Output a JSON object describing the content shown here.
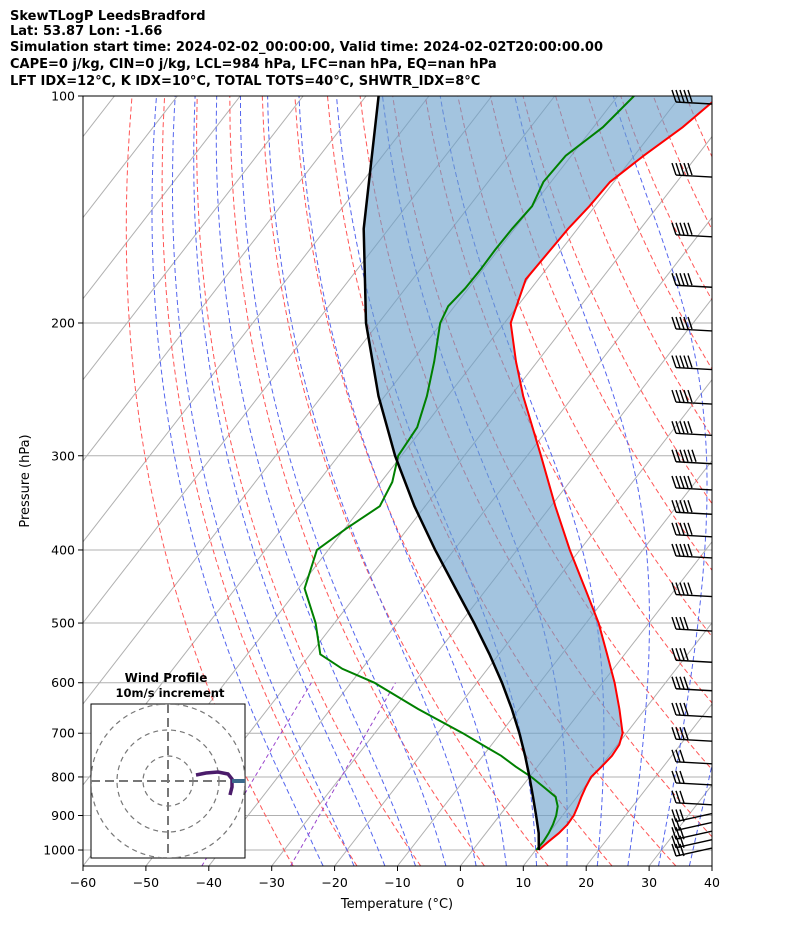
{
  "header": {
    "line1": "SkewTLogP LeedsBradford",
    "line2": "Lat: 53.87   Lon: -1.66",
    "line3": "Simulation start time: 2024-02-02_00:00:00, Valid time: 2024-02-02T20:00:00.00",
    "line4": "CAPE=0 j/kg, CIN=0 j/kg, LCL=984 hPa, LFC=nan hPa, EQ=nan hPa",
    "line5": "LFT IDX=12°C, K IDX=10°C, TOTAL TOTS=40°C, SHWTR_IDX=8°C"
  },
  "chart_data": {
    "type": "skew-t log-p",
    "xlabel": "Temperature (°C)",
    "ylabel": "Pressure (hPa)",
    "xlim": [
      -60,
      40
    ],
    "ylim_hPa": [
      1050,
      100
    ],
    "x_ticks": [
      "−60",
      "−50",
      "−40",
      "−30",
      "−20",
      "−10",
      "0",
      "10",
      "20",
      "30",
      "40"
    ],
    "x_tick_values": [
      -60,
      -50,
      -40,
      -30,
      -20,
      -10,
      0,
      10,
      20,
      30,
      40
    ],
    "y_ticks": [
      "1000",
      "900",
      "800",
      "700",
      "600",
      "500",
      "400",
      "300",
      "200",
      "100"
    ],
    "y_tick_values": [
      1000,
      900,
      800,
      700,
      600,
      500,
      400,
      300,
      200,
      100
    ],
    "grid": true,
    "series": [
      {
        "role": "temperature",
        "color": "#ff0000",
        "p": [
          1000,
          975,
          950,
          925,
          900,
          875,
          850,
          825,
          800,
          775,
          750,
          725,
          700,
          650,
          600,
          550,
          500,
          450,
          400,
          350,
          300,
          250,
          225,
          200,
          175,
          150,
          140,
          130,
          120,
          110,
          100
        ],
        "t": [
          10.5,
          11.0,
          11.6,
          11.9,
          11.8,
          11.3,
          10.7,
          10.2,
          9.8,
          10.2,
          10.5,
          10.3,
          9.4,
          5.9,
          1.9,
          -2.8,
          -8.0,
          -14.4,
          -21.6,
          -29.3,
          -37.8,
          -48.0,
          -53.4,
          -59.0,
          -62.0,
          -61.5,
          -60.9,
          -60.6,
          -58.5,
          -55.8,
          -53.8
        ]
      },
      {
        "role": "dewpoint",
        "color": "#008000",
        "p": [
          1000,
          975,
          950,
          925,
          900,
          875,
          850,
          825,
          800,
          775,
          750,
          725,
          700,
          650,
          600,
          575,
          550,
          500,
          450,
          400,
          375,
          350,
          325,
          300,
          275,
          250,
          225,
          200,
          190,
          180,
          170,
          160,
          150,
          140,
          130,
          120,
          110,
          100
        ],
        "t": [
          10.1,
          10.2,
          10.0,
          9.6,
          9.0,
          8.1,
          6.6,
          3.5,
          0.3,
          -3.5,
          -7.1,
          -11.5,
          -16.0,
          -26.1,
          -36.3,
          -43.1,
          -48.4,
          -53.0,
          -59.0,
          -61.8,
          -59.8,
          -57.2,
          -58.2,
          -60.5,
          -61.0,
          -63.3,
          -66.4,
          -70.2,
          -71.0,
          -70.5,
          -70.4,
          -70.5,
          -70.4,
          -70.0,
          -71.2,
          -70.9,
          -68.5,
          -67.4
        ]
      },
      {
        "role": "parcel",
        "color": "#000000",
        "p": [
          1000,
          950,
          900,
          850,
          800,
          750,
          700,
          650,
          600,
          550,
          500,
          450,
          400,
          350,
          300,
          250,
          200,
          150,
          100
        ],
        "t": [
          10.5,
          8.4,
          5.8,
          3.0,
          0.0,
          -3.3,
          -7.0,
          -11.2,
          -16.0,
          -21.5,
          -27.8,
          -35.0,
          -43.0,
          -51.7,
          -61.0,
          -71.0,
          -82.0,
          -94.0,
          -108.0
        ]
      }
    ],
    "wind_barbs": {
      "p": [
        100,
        125,
        150,
        175,
        200,
        225,
        250,
        275,
        300,
        325,
        350,
        375,
        400,
        450,
        500,
        550,
        600,
        650,
        700,
        750,
        800,
        850,
        900,
        925,
        950,
        975,
        1000
      ],
      "speed_kt": [
        50,
        45,
        50,
        50,
        50,
        50,
        50,
        50,
        55,
        50,
        50,
        45,
        50,
        45,
        40,
        40,
        35,
        35,
        35,
        30,
        30,
        30,
        25,
        20,
        25,
        25,
        25
      ]
    },
    "inset": {
      "title": "Wind Profile",
      "subtitle": "10m/s increment",
      "hodograph_u": [
        0.0,
        0.8,
        1.5,
        2.2,
        2.3,
        2.3,
        2.1,
        1.6,
        1.0,
        0.3,
        -0.5,
        -1.2,
        -2.0
      ],
      "hodograph_v": [
        -0.5,
        -0.1,
        0.3,
        0.5,
        0.6,
        0.6,
        0.5,
        0.4,
        0.3,
        0.2,
        0.2,
        0.2,
        0.1
      ],
      "line_color": "#4b1c6b",
      "tail_color": "#3c6a8c"
    }
  }
}
